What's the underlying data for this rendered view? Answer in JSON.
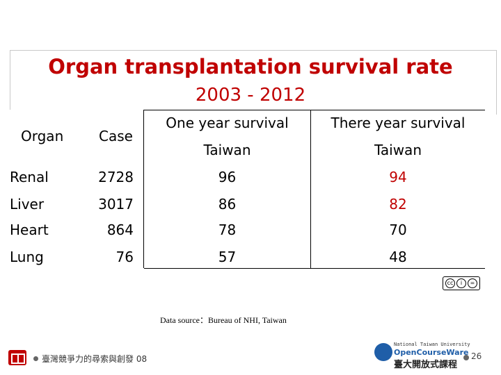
{
  "slide": {
    "title": "Organ transplantation survival rate",
    "subtitle": "2003 - 2012"
  },
  "table": {
    "headers": {
      "organ": "Organ",
      "case": "Case",
      "one_year": "One year survival",
      "three_year": "There year survival",
      "one_year_sub": "Taiwan",
      "three_year_sub": "Taiwan"
    },
    "rows": [
      {
        "organ": "Renal",
        "case": "2728",
        "one_year": "96",
        "three_year": "94"
      },
      {
        "organ": "Liver",
        "case": "3017",
        "one_year": "86",
        "three_year": "82"
      },
      {
        "organ": "Heart",
        "case": "864",
        "one_year": "78",
        "three_year": "70"
      },
      {
        "organ": "Lung",
        "case": "76",
        "one_year": "57",
        "three_year": "48"
      }
    ]
  },
  "source": "Data source：Bureau of NHI, Taiwan",
  "footer": {
    "left_text": "臺灣競爭力的尋索與創發 08",
    "ntu_line1": "National Taiwan University",
    "ntu_line2": "OpenCourseWare",
    "ntu_line3": "臺大開放式課程",
    "page_number": "26"
  },
  "colors": {
    "accent": "#c00000",
    "ntu_blue": "#1f5ea8"
  },
  "icons": {
    "cc_license": "creative-commons-icon",
    "logo": "course-logo-icon",
    "ntu": "ntu-ocw-logo"
  }
}
